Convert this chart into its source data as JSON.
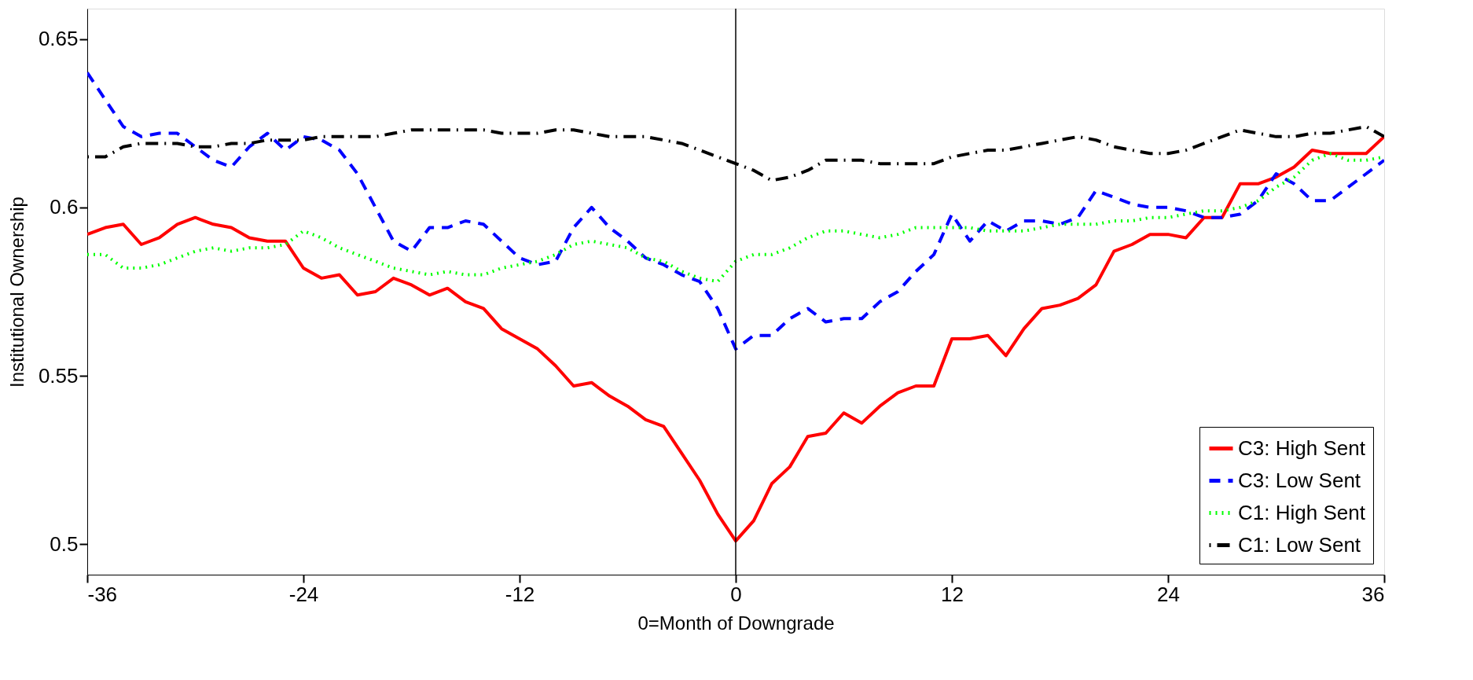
{
  "chart_data": {
    "type": "line",
    "xlabel": "0=Month of Downgrade",
    "ylabel": "Institutional Ownership",
    "x": [
      -36,
      -35,
      -34,
      -33,
      -32,
      -31,
      -30,
      -29,
      -28,
      -27,
      -26,
      -25,
      -24,
      -23,
      -22,
      -21,
      -20,
      -19,
      -18,
      -17,
      -16,
      -15,
      -14,
      -13,
      -12,
      -11,
      -10,
      -9,
      -8,
      -7,
      -6,
      -5,
      -4,
      -3,
      -2,
      -1,
      0,
      1,
      2,
      3,
      4,
      5,
      6,
      7,
      8,
      9,
      10,
      11,
      12,
      13,
      14,
      15,
      16,
      17,
      18,
      19,
      20,
      21,
      22,
      23,
      24,
      25,
      26,
      27,
      28,
      29,
      30,
      31,
      32,
      33,
      34,
      35,
      36
    ],
    "xlim": [
      -36,
      36
    ],
    "xticks": [
      -36,
      -24,
      -12,
      0,
      12,
      24,
      36
    ],
    "ylim": [
      0.491,
      0.659
    ],
    "yticks": [
      0.5,
      0.55,
      0.6,
      0.65
    ],
    "grid": false,
    "legend": "bottom right",
    "marker": "none",
    "ref_lines": [
      {
        "axis": "x",
        "value": 0,
        "color": "#000000",
        "line_style": "solid"
      }
    ],
    "series": [
      {
        "name": "C3: High Sent",
        "color": "#ff0000",
        "line_style": "solid",
        "values": [
          0.592,
          0.594,
          0.595,
          0.589,
          0.591,
          0.595,
          0.597,
          0.595,
          0.594,
          0.591,
          0.59,
          0.59,
          0.582,
          0.579,
          0.58,
          0.574,
          0.575,
          0.579,
          0.577,
          0.574,
          0.576,
          0.572,
          0.57,
          0.564,
          0.561,
          0.558,
          0.553,
          0.547,
          0.548,
          0.544,
          0.541,
          0.537,
          0.535,
          0.527,
          0.519,
          0.509,
          0.501,
          0.507,
          0.518,
          0.523,
          0.532,
          0.533,
          0.539,
          0.536,
          0.541,
          0.545,
          0.547,
          0.547,
          0.561,
          0.561,
          0.562,
          0.556,
          0.564,
          0.57,
          0.571,
          0.573,
          0.577,
          0.587,
          0.589,
          0.592,
          0.592,
          0.591,
          0.597,
          0.597,
          0.607,
          0.607,
          0.609,
          0.612,
          0.617,
          0.616,
          0.616,
          0.616,
          0.621
        ]
      },
      {
        "name": "C3: Low Sent",
        "color": "#0000ff",
        "line_style": "dashed",
        "values": [
          0.64,
          0.632,
          0.624,
          0.621,
          0.622,
          0.622,
          0.618,
          0.614,
          0.612,
          0.618,
          0.622,
          0.617,
          0.621,
          0.62,
          0.617,
          0.61,
          0.6,
          0.59,
          0.587,
          0.594,
          0.594,
          0.596,
          0.595,
          0.59,
          0.585,
          0.583,
          0.584,
          0.594,
          0.6,
          0.594,
          0.59,
          0.585,
          0.583,
          0.58,
          0.578,
          0.57,
          0.558,
          0.562,
          0.562,
          0.567,
          0.57,
          0.566,
          0.567,
          0.567,
          0.572,
          0.575,
          0.581,
          0.586,
          0.598,
          0.59,
          0.596,
          0.593,
          0.596,
          0.596,
          0.595,
          0.597,
          0.605,
          0.603,
          0.601,
          0.6,
          0.6,
          0.599,
          0.597,
          0.597,
          0.598,
          0.602,
          0.61,
          0.607,
          0.602,
          0.602,
          0.606,
          0.61,
          0.614
        ]
      },
      {
        "name": "C1: High Sent",
        "color": "#00ff00",
        "line_style": "dotted",
        "values": [
          0.586,
          0.586,
          0.582,
          0.582,
          0.583,
          0.585,
          0.587,
          0.588,
          0.587,
          0.588,
          0.588,
          0.589,
          0.593,
          0.591,
          0.588,
          0.586,
          0.584,
          0.582,
          0.581,
          0.58,
          0.581,
          0.58,
          0.58,
          0.582,
          0.583,
          0.584,
          0.586,
          0.589,
          0.59,
          0.589,
          0.588,
          0.585,
          0.584,
          0.581,
          0.579,
          0.578,
          0.584,
          0.586,
          0.586,
          0.588,
          0.591,
          0.593,
          0.593,
          0.592,
          0.591,
          0.592,
          0.594,
          0.594,
          0.594,
          0.594,
          0.593,
          0.593,
          0.593,
          0.594,
          0.595,
          0.595,
          0.595,
          0.596,
          0.596,
          0.597,
          0.597,
          0.598,
          0.599,
          0.599,
          0.6,
          0.602,
          0.606,
          0.609,
          0.614,
          0.616,
          0.614,
          0.614,
          0.615
        ]
      },
      {
        "name": "C1: Low Sent",
        "color": "#000000",
        "line_style": "dashdot",
        "values": [
          0.615,
          0.615,
          0.618,
          0.619,
          0.619,
          0.619,
          0.618,
          0.618,
          0.619,
          0.619,
          0.62,
          0.62,
          0.62,
          0.621,
          0.621,
          0.621,
          0.621,
          0.622,
          0.623,
          0.623,
          0.623,
          0.623,
          0.623,
          0.622,
          0.622,
          0.622,
          0.623,
          0.623,
          0.622,
          0.621,
          0.621,
          0.621,
          0.62,
          0.619,
          0.617,
          0.615,
          0.613,
          0.611,
          0.608,
          0.609,
          0.611,
          0.614,
          0.614,
          0.614,
          0.613,
          0.613,
          0.613,
          0.613,
          0.615,
          0.616,
          0.617,
          0.617,
          0.618,
          0.619,
          0.62,
          0.621,
          0.62,
          0.618,
          0.617,
          0.616,
          0.616,
          0.617,
          0.619,
          0.621,
          0.623,
          0.622,
          0.621,
          0.621,
          0.622,
          0.622,
          0.623,
          0.624,
          0.621
        ]
      }
    ]
  }
}
